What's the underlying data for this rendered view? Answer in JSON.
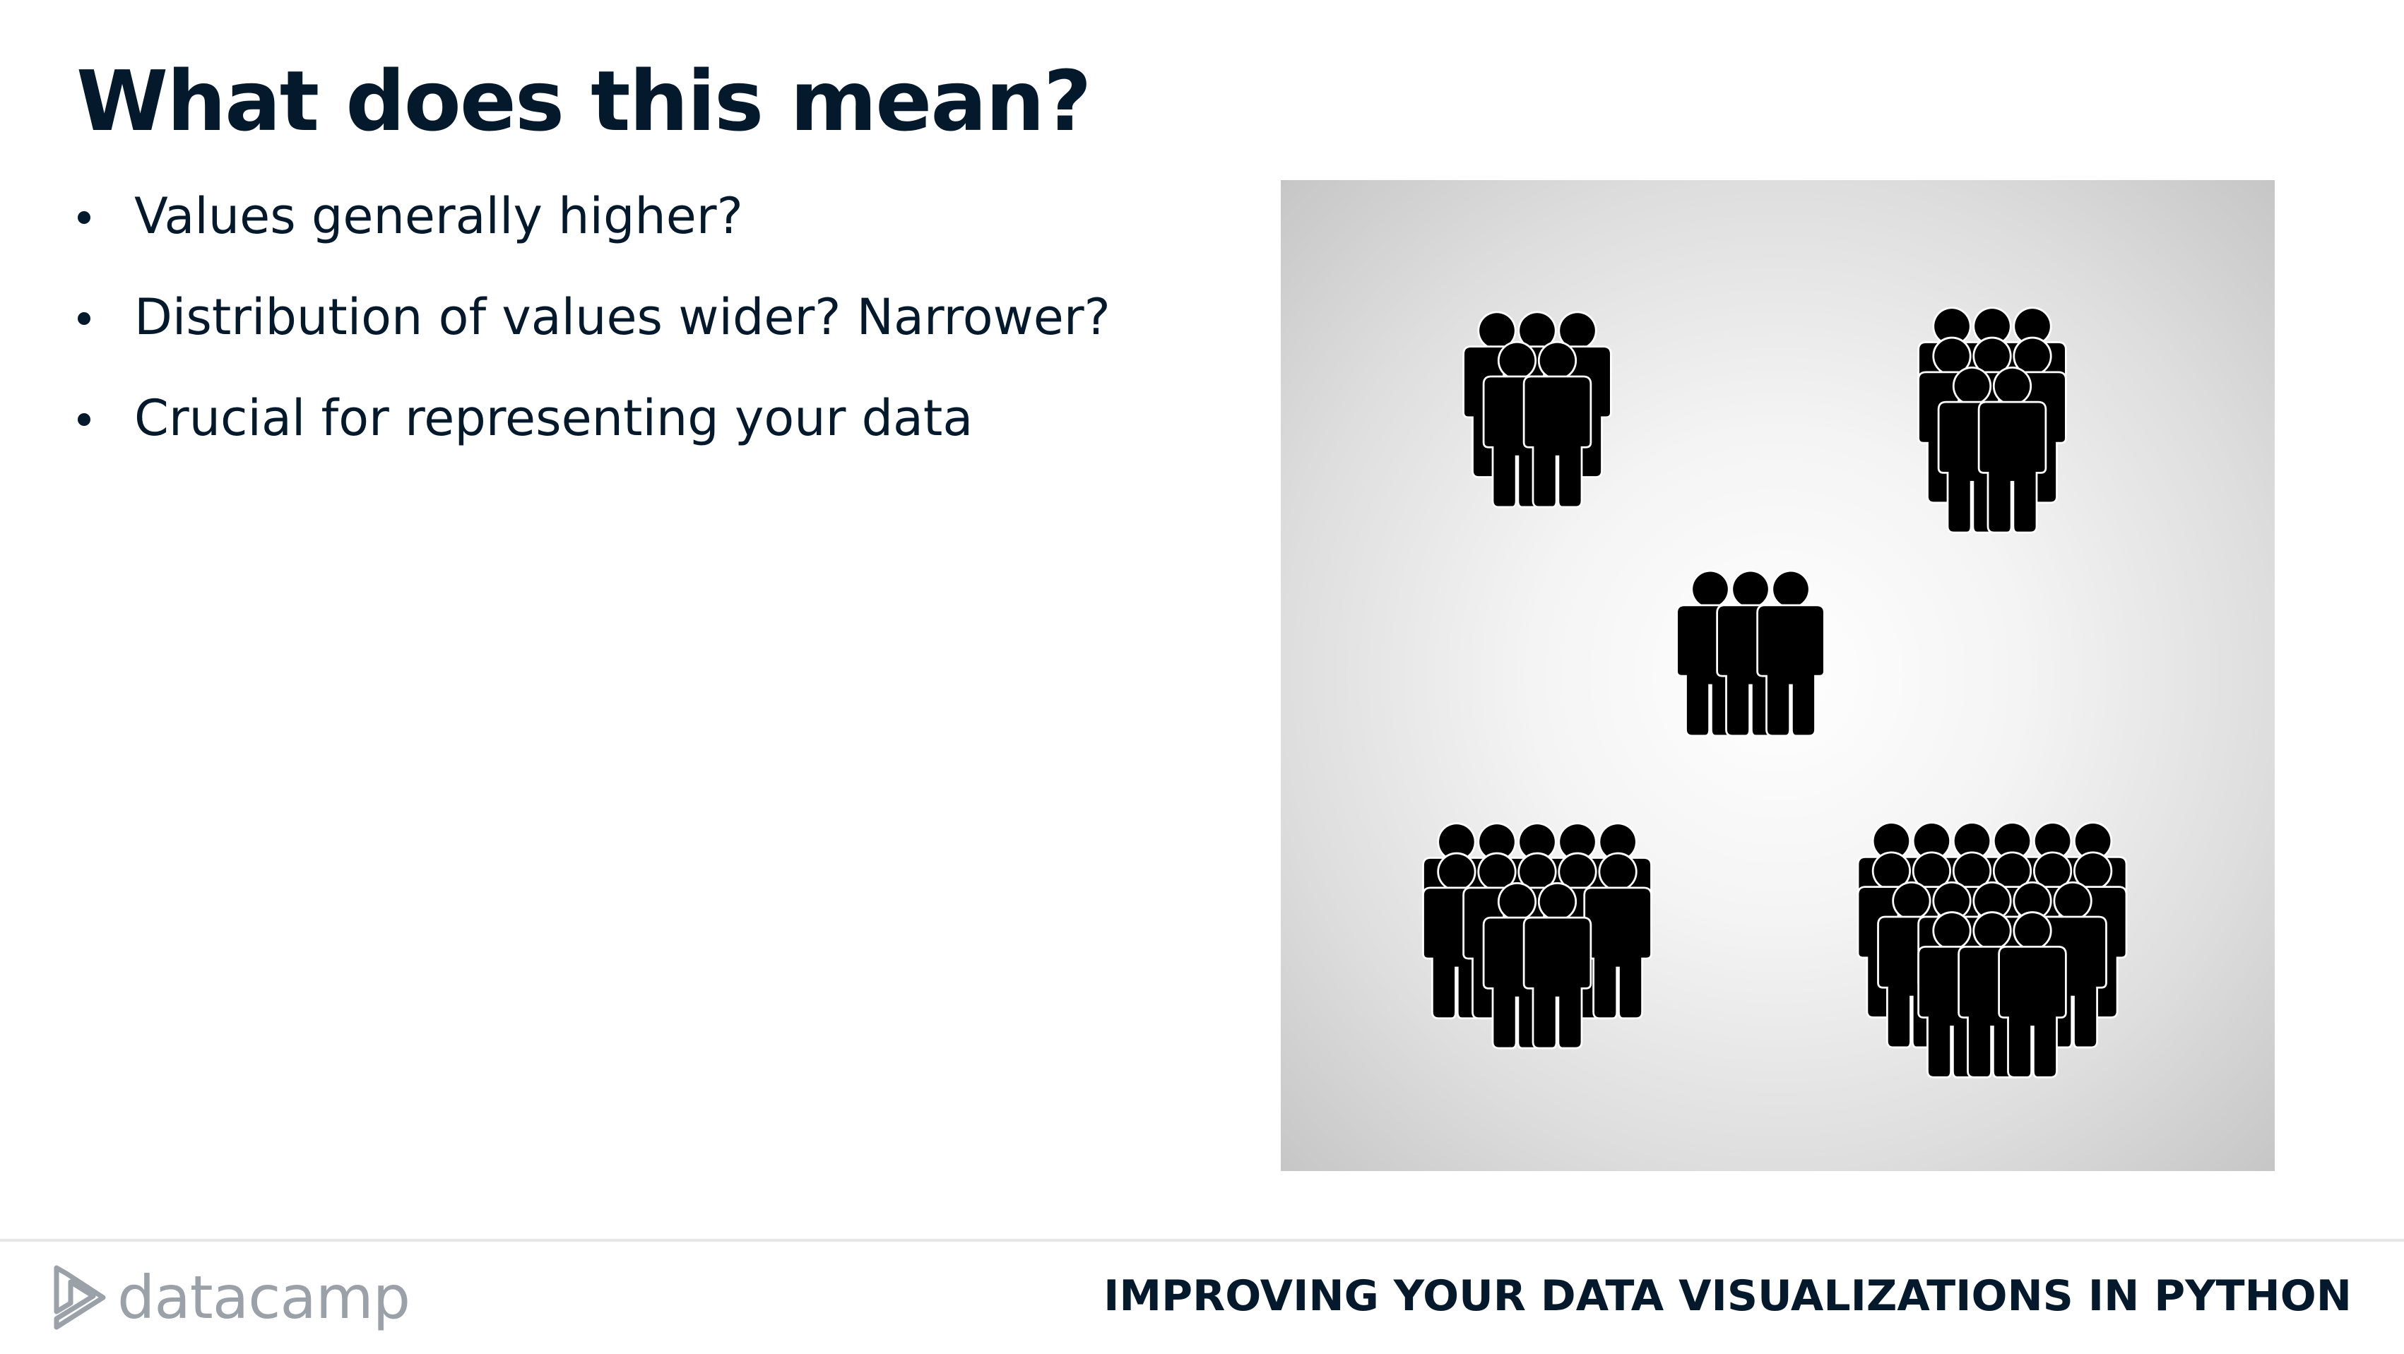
{
  "slide": {
    "title": "What does this mean?",
    "bullets": [
      "Values generally higher?",
      "Distribution of values wider? Narrower?",
      "Crucial for representing your data"
    ]
  },
  "illustration": {
    "icon": "crowd-groups-icon",
    "group_sizes": [
      5,
      8,
      3,
      12,
      20
    ]
  },
  "footer": {
    "logo_text": "datacamp",
    "course_title": "IMPROVING YOUR DATA VISUALIZATIONS IN PYTHON"
  },
  "colors": {
    "text": "#05192d",
    "logo_gray": "#9ba1a8",
    "icon_fill": "#000000"
  }
}
